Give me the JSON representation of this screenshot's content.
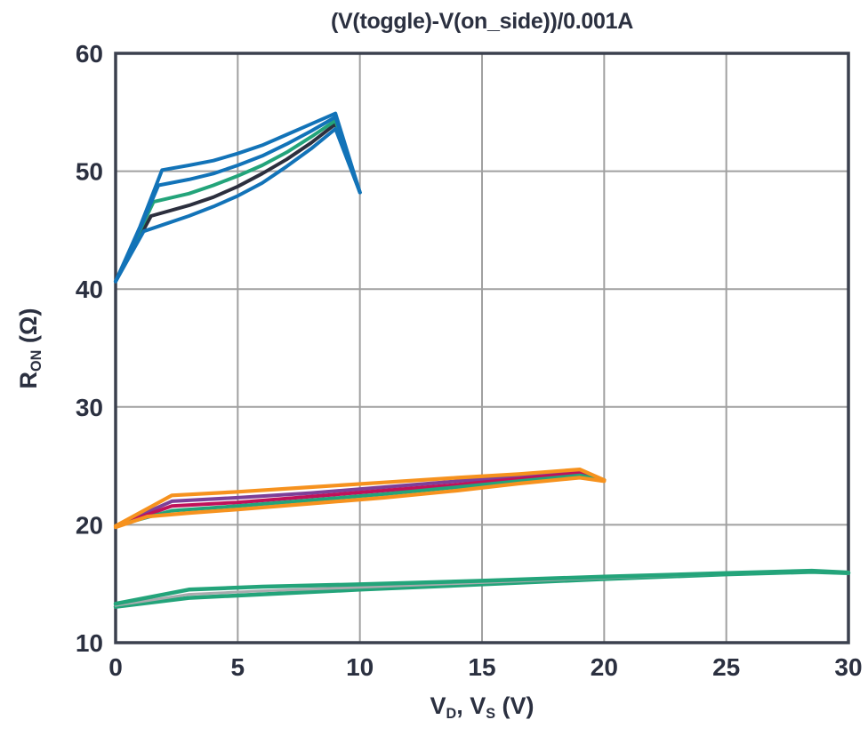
{
  "colors": {
    "blue": "#1273b8",
    "green": "#23a47a",
    "black": "#2c2f3e",
    "orange": "#f6921e",
    "purple": "#7d3f98",
    "crimson": "#c1115a",
    "gray": "#a9abae",
    "grid": "#a0a0a0",
    "axis": "#3b404e",
    "text": "#2b3040",
    "background": "#ffffff"
  },
  "chart_data": {
    "type": "line",
    "title": "(V(toggle)-V(on_side))/0.001A",
    "xlabel": "V_D, V_S (V)",
    "ylabel": "R_ON (Ω)",
    "xlabel_parts": [
      {
        "t": "V"
      },
      {
        "sub": "D"
      },
      {
        "t": ", V"
      },
      {
        "sub": "S"
      },
      {
        "t": " (V)"
      }
    ],
    "ylabel_parts": [
      {
        "t": "R"
      },
      {
        "sub": "ON"
      },
      {
        "t": " (Ω)"
      }
    ],
    "xlim": [
      0,
      30
    ],
    "ylim": [
      10,
      60
    ],
    "xticks": [
      0,
      5,
      10,
      15,
      20,
      25,
      30
    ],
    "yticks": [
      10,
      20,
      30,
      40,
      50,
      60
    ],
    "grid": true,
    "legend": false,
    "series": [
      {
        "name": "low-vdd-green-bottom",
        "color": "#23a47a",
        "width": 4.5,
        "points": [
          [
            0,
            13.05
          ],
          [
            3,
            13.8
          ],
          [
            6,
            14.1
          ],
          [
            10,
            14.5
          ],
          [
            15,
            14.95
          ],
          [
            20,
            15.4
          ],
          [
            25,
            15.8
          ],
          [
            28.5,
            16.0
          ],
          [
            30,
            15.9
          ]
        ]
      },
      {
        "name": "low-vdd-gray",
        "color": "#a9abae",
        "width": 3,
        "points": [
          [
            0,
            13.15
          ],
          [
            3,
            14.1
          ],
          [
            6,
            14.4
          ],
          [
            10,
            14.7
          ],
          [
            15,
            15.1
          ],
          [
            20,
            15.5
          ],
          [
            25,
            15.85
          ],
          [
            28.5,
            16.05
          ],
          [
            30,
            15.9
          ]
        ]
      },
      {
        "name": "low-vdd-green-top",
        "color": "#23a47a",
        "width": 4.5,
        "points": [
          [
            0,
            13.3
          ],
          [
            3,
            14.5
          ],
          [
            6,
            14.75
          ],
          [
            10,
            14.95
          ],
          [
            15,
            15.25
          ],
          [
            20,
            15.6
          ],
          [
            25,
            15.9
          ],
          [
            28.5,
            16.1
          ],
          [
            30,
            15.95
          ]
        ]
      },
      {
        "name": "mid-vdd-purple",
        "color": "#7d3f98",
        "width": 4,
        "points": [
          [
            0,
            19.9
          ],
          [
            2.3,
            22.0
          ],
          [
            5,
            22.3
          ],
          [
            8,
            22.7
          ],
          [
            11,
            23.2
          ],
          [
            14,
            23.7
          ],
          [
            16.5,
            24.1
          ],
          [
            19,
            24.5
          ],
          [
            20,
            23.8
          ]
        ]
      },
      {
        "name": "mid-vdd-crimson",
        "color": "#c1115a",
        "width": 4,
        "points": [
          [
            0,
            19.9
          ],
          [
            2.3,
            21.6
          ],
          [
            5,
            21.9
          ],
          [
            8,
            22.4
          ],
          [
            11,
            22.9
          ],
          [
            14,
            23.4
          ],
          [
            16.5,
            23.9
          ],
          [
            19,
            24.4
          ],
          [
            20,
            23.8
          ]
        ]
      },
      {
        "name": "mid-vdd-teal",
        "color": "#23a47a",
        "width": 4,
        "points": [
          [
            0,
            19.9
          ],
          [
            2.3,
            21.2
          ],
          [
            5,
            21.6
          ],
          [
            8,
            22.1
          ],
          [
            11,
            22.6
          ],
          [
            14,
            23.2
          ],
          [
            16.5,
            23.7
          ],
          [
            19,
            24.2
          ],
          [
            20,
            23.8
          ]
        ]
      },
      {
        "name": "mid-vdd-orange-bottom",
        "color": "#f6921e",
        "width": 4.2,
        "points": [
          [
            0,
            19.8
          ],
          [
            1.3,
            20.7
          ],
          [
            3,
            21.0
          ],
          [
            5,
            21.3
          ],
          [
            8,
            21.8
          ],
          [
            11,
            22.3
          ],
          [
            14,
            22.9
          ],
          [
            16.5,
            23.5
          ],
          [
            19,
            24.0
          ],
          [
            20,
            23.7
          ]
        ]
      },
      {
        "name": "mid-vdd-orange-top",
        "color": "#f6921e",
        "width": 4.2,
        "points": [
          [
            0,
            19.9
          ],
          [
            2.3,
            22.5
          ],
          [
            5,
            22.8
          ],
          [
            8,
            23.2
          ],
          [
            11,
            23.6
          ],
          [
            14,
            24.0
          ],
          [
            16.5,
            24.3
          ],
          [
            19,
            24.7
          ],
          [
            20,
            23.8
          ]
        ]
      },
      {
        "name": "high-vdd-black",
        "color": "#2c2f3e",
        "width": 4,
        "points": [
          [
            0,
            40.65
          ],
          [
            1.45,
            46.2
          ],
          [
            3,
            47.1
          ],
          [
            4,
            47.8
          ],
          [
            5,
            48.7
          ],
          [
            6,
            49.8
          ],
          [
            7,
            51.0
          ],
          [
            8,
            52.4
          ],
          [
            9,
            54.0
          ],
          [
            10,
            48.2
          ]
        ]
      },
      {
        "name": "high-vdd-green",
        "color": "#23a47a",
        "width": 4,
        "points": [
          [
            0,
            40.65
          ],
          [
            1.55,
            47.4
          ],
          [
            3,
            48.1
          ],
          [
            4,
            48.8
          ],
          [
            5,
            49.6
          ],
          [
            6,
            50.5
          ],
          [
            7,
            51.6
          ],
          [
            8,
            52.9
          ],
          [
            9,
            54.3
          ],
          [
            10,
            48.2
          ]
        ]
      },
      {
        "name": "high-vdd-blue-2",
        "color": "#1273b8",
        "width": 4,
        "points": [
          [
            0,
            40.65
          ],
          [
            1.1,
            45.6
          ],
          [
            1.75,
            48.8
          ],
          [
            3,
            49.3
          ],
          [
            4,
            49.8
          ],
          [
            5,
            50.5
          ],
          [
            6,
            51.3
          ],
          [
            7,
            52.3
          ],
          [
            8,
            53.4
          ],
          [
            9,
            54.6
          ],
          [
            10,
            48.2
          ]
        ]
      },
      {
        "name": "high-vdd-blue-inner",
        "color": "#1273b8",
        "width": 4,
        "points": [
          [
            0,
            40.65
          ],
          [
            1.15,
            44.9
          ],
          [
            2,
            45.5
          ],
          [
            3,
            46.2
          ],
          [
            4,
            47.0
          ],
          [
            5,
            47.9
          ],
          [
            6,
            49.0
          ],
          [
            7,
            50.4
          ],
          [
            8,
            51.9
          ],
          [
            9,
            53.6
          ],
          [
            10,
            48.2
          ]
        ]
      },
      {
        "name": "high-vdd-blue-outer",
        "color": "#1273b8",
        "width": 4,
        "points": [
          [
            0,
            40.65
          ],
          [
            1.0,
            45.3
          ],
          [
            1.9,
            50.1
          ],
          [
            3,
            50.5
          ],
          [
            4,
            50.9
          ],
          [
            5,
            51.5
          ],
          [
            6,
            52.2
          ],
          [
            7,
            53.1
          ],
          [
            8,
            54.0
          ],
          [
            9,
            54.9
          ],
          [
            10,
            48.2
          ]
        ]
      }
    ]
  }
}
